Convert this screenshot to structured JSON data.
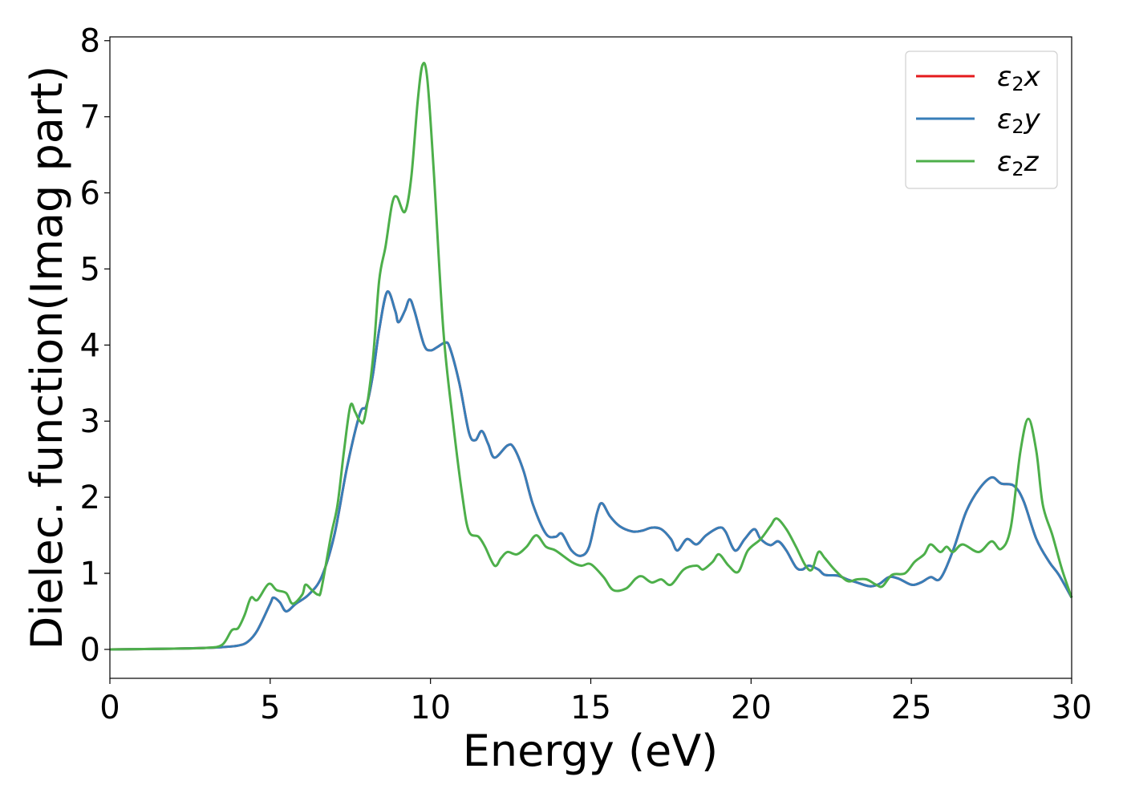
{
  "chart_data": {
    "type": "line",
    "title": "",
    "xlabel": "Energy (eV)",
    "ylabel": "Dielec. function(Imag part)",
    "xlim": [
      0,
      30
    ],
    "ylim": [
      -0.38,
      8.05
    ],
    "xticks": [
      0,
      5,
      10,
      15,
      20,
      25,
      30
    ],
    "yticks": [
      0,
      1,
      2,
      3,
      4,
      5,
      6,
      7,
      8
    ],
    "grid": false,
    "legend_placement": "top-right",
    "series": [
      {
        "name": "ε2x",
        "base": "ε",
        "sub": "2",
        "axis": "x",
        "color": "#e41a1c",
        "x": [
          0,
          2,
          3,
          3.5,
          4,
          4.3,
          4.6,
          5,
          5.1,
          5.3,
          5.5,
          5.8,
          6.2,
          6.6,
          7,
          7.4,
          7.8,
          8,
          8.2,
          8.4,
          8.65,
          8.9,
          9,
          9.2,
          9.35,
          9.5,
          9.8,
          10,
          10.2,
          10.45,
          10.6,
          10.9,
          11.2,
          11.4,
          11.6,
          11.8,
          12,
          12.4,
          12.6,
          12.9,
          13.2,
          13.6,
          13.9,
          14.1,
          14.4,
          14.7,
          14.95,
          15.2,
          15.35,
          15.6,
          15.9,
          16.3,
          16.6,
          16.9,
          17.2,
          17.5,
          17.7,
          18,
          18.3,
          18.6,
          19,
          19.2,
          19.5,
          19.8,
          20.1,
          20.3,
          20.6,
          20.85,
          21.1,
          21.4,
          21.6,
          21.8,
          22.1,
          22.3,
          22.7,
          23,
          23.3,
          23.7,
          24,
          24.3,
          24.6,
          25,
          25.3,
          25.6,
          25.9,
          26.3,
          26.7,
          27.1,
          27.5,
          27.8,
          28.2,
          28.5,
          28.9,
          29.3,
          29.6,
          30
        ],
        "y": [
          0,
          0.01,
          0.02,
          0.03,
          0.05,
          0.1,
          0.25,
          0.6,
          0.68,
          0.62,
          0.5,
          0.6,
          0.72,
          0.95,
          1.5,
          2.4,
          3.1,
          3.2,
          3.6,
          4.2,
          4.7,
          4.45,
          4.3,
          4.45,
          4.6,
          4.45,
          4.0,
          3.93,
          3.97,
          4.03,
          3.97,
          3.5,
          2.85,
          2.75,
          2.87,
          2.7,
          2.52,
          2.68,
          2.65,
          2.35,
          1.9,
          1.52,
          1.48,
          1.52,
          1.3,
          1.23,
          1.35,
          1.8,
          1.92,
          1.75,
          1.62,
          1.55,
          1.56,
          1.6,
          1.58,
          1.45,
          1.3,
          1.45,
          1.38,
          1.5,
          1.6,
          1.55,
          1.3,
          1.45,
          1.58,
          1.45,
          1.37,
          1.42,
          1.3,
          1.08,
          1.05,
          1.1,
          1.05,
          0.98,
          0.97,
          0.92,
          0.88,
          0.83,
          0.86,
          0.95,
          0.93,
          0.85,
          0.88,
          0.95,
          0.93,
          1.3,
          1.8,
          2.1,
          2.26,
          2.18,
          2.15,
          1.95,
          1.45,
          1.15,
          0.98,
          0.68
        ]
      },
      {
        "name": "ε2y",
        "base": "ε",
        "sub": "2",
        "axis": "y",
        "color": "#377eb8",
        "x": [
          0,
          2,
          3,
          3.5,
          4,
          4.3,
          4.6,
          5,
          5.1,
          5.3,
          5.5,
          5.8,
          6.2,
          6.6,
          7,
          7.4,
          7.8,
          8,
          8.2,
          8.4,
          8.65,
          8.9,
          9,
          9.2,
          9.35,
          9.5,
          9.8,
          10,
          10.2,
          10.45,
          10.6,
          10.9,
          11.2,
          11.4,
          11.6,
          11.8,
          12,
          12.4,
          12.6,
          12.9,
          13.2,
          13.6,
          13.9,
          14.1,
          14.4,
          14.7,
          14.95,
          15.2,
          15.35,
          15.6,
          15.9,
          16.3,
          16.6,
          16.9,
          17.2,
          17.5,
          17.7,
          18,
          18.3,
          18.6,
          19,
          19.2,
          19.5,
          19.8,
          20.1,
          20.3,
          20.6,
          20.85,
          21.1,
          21.4,
          21.6,
          21.8,
          22.1,
          22.3,
          22.7,
          23,
          23.3,
          23.7,
          24,
          24.3,
          24.6,
          25,
          25.3,
          25.6,
          25.9,
          26.3,
          26.7,
          27.1,
          27.5,
          27.8,
          28.2,
          28.5,
          28.9,
          29.3,
          29.6,
          30
        ],
        "y": [
          0,
          0.01,
          0.02,
          0.03,
          0.05,
          0.1,
          0.25,
          0.6,
          0.68,
          0.62,
          0.5,
          0.6,
          0.72,
          0.95,
          1.5,
          2.4,
          3.1,
          3.2,
          3.6,
          4.2,
          4.7,
          4.45,
          4.3,
          4.45,
          4.6,
          4.45,
          4.0,
          3.93,
          3.97,
          4.03,
          3.97,
          3.5,
          2.85,
          2.75,
          2.87,
          2.7,
          2.52,
          2.68,
          2.65,
          2.35,
          1.9,
          1.52,
          1.48,
          1.52,
          1.3,
          1.23,
          1.35,
          1.8,
          1.92,
          1.75,
          1.62,
          1.55,
          1.56,
          1.6,
          1.58,
          1.45,
          1.3,
          1.45,
          1.38,
          1.5,
          1.6,
          1.55,
          1.3,
          1.45,
          1.58,
          1.45,
          1.37,
          1.42,
          1.3,
          1.08,
          1.05,
          1.1,
          1.05,
          0.98,
          0.97,
          0.92,
          0.88,
          0.83,
          0.86,
          0.95,
          0.93,
          0.85,
          0.88,
          0.95,
          0.93,
          1.3,
          1.8,
          2.1,
          2.26,
          2.18,
          2.15,
          1.95,
          1.45,
          1.15,
          0.98,
          0.68
        ]
      },
      {
        "name": "ε2z",
        "base": "ε",
        "sub": "2",
        "axis": "z",
        "color": "#4daf4a",
        "x": [
          0,
          2,
          3,
          3.5,
          3.8,
          4,
          4.2,
          4.4,
          4.6,
          4.95,
          5.2,
          5.5,
          5.7,
          6,
          6.1,
          6.3,
          6.5,
          6.6,
          6.9,
          7.1,
          7.3,
          7.5,
          7.65,
          7.8,
          7.95,
          8.2,
          8.4,
          8.6,
          8.8,
          8.95,
          9.2,
          9.4,
          9.6,
          9.75,
          9.9,
          10.1,
          10.4,
          10.7,
          11,
          11.2,
          11.5,
          11.7,
          12,
          12.2,
          12.4,
          12.7,
          13,
          13.3,
          13.6,
          13.9,
          14.4,
          14.7,
          15,
          15.4,
          15.7,
          16.1,
          16.4,
          16.6,
          16.9,
          17.2,
          17.5,
          17.9,
          18.3,
          18.5,
          18.8,
          19,
          19.3,
          19.6,
          19.9,
          20.3,
          20.6,
          20.8,
          21.1,
          21.4,
          21.7,
          21.9,
          22.1,
          22.3,
          22.6,
          23,
          23.3,
          23.6,
          23.9,
          24.1,
          24.4,
          24.8,
          25.1,
          25.4,
          25.6,
          25.9,
          26.1,
          26.3,
          26.6,
          27.1,
          27.5,
          27.8,
          28.1,
          28.4,
          28.65,
          28.9,
          29.1,
          29.4,
          29.7,
          30
        ],
        "y": [
          0,
          0.01,
          0.02,
          0.06,
          0.25,
          0.28,
          0.45,
          0.68,
          0.65,
          0.86,
          0.78,
          0.74,
          0.6,
          0.72,
          0.85,
          0.78,
          0.72,
          0.8,
          1.5,
          1.9,
          2.6,
          3.2,
          3.12,
          3.0,
          3.05,
          3.8,
          4.85,
          5.3,
          5.85,
          5.95,
          5.75,
          6.2,
          7.2,
          7.68,
          7.5,
          6.3,
          4.2,
          3.0,
          2.0,
          1.55,
          1.48,
          1.35,
          1.1,
          1.2,
          1.28,
          1.25,
          1.35,
          1.5,
          1.35,
          1.3,
          1.15,
          1.1,
          1.12,
          0.95,
          0.78,
          0.8,
          0.93,
          0.96,
          0.88,
          0.92,
          0.85,
          1.05,
          1.1,
          1.05,
          1.15,
          1.25,
          1.1,
          1.02,
          1.3,
          1.45,
          1.62,
          1.72,
          1.58,
          1.35,
          1.1,
          1.05,
          1.28,
          1.2,
          1.05,
          0.9,
          0.92,
          0.92,
          0.85,
          0.83,
          0.98,
          1.0,
          1.15,
          1.25,
          1.38,
          1.28,
          1.35,
          1.28,
          1.38,
          1.28,
          1.42,
          1.32,
          1.6,
          2.6,
          3.03,
          2.6,
          1.9,
          1.5,
          1.05,
          0.68
        ]
      }
    ]
  }
}
